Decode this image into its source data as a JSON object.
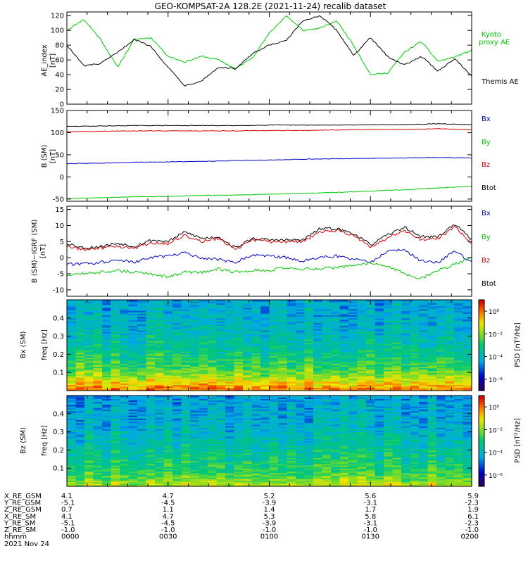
{
  "title": "GEO-KOMPSAT-2A 128.2E (2021-11-24) recalib dataset",
  "colors": {
    "black": "#000000",
    "red": "#d40000",
    "blue": "#0000c8",
    "green": "#00d000",
    "frame": "#000000"
  },
  "panels": [
    {
      "id": "ae",
      "ylabel": "AE_index",
      "yunit": "[nT]",
      "yrange": [
        0,
        125
      ],
      "yticks": [
        "0",
        "20",
        "40",
        "60",
        "80",
        "100",
        "120"
      ],
      "legend": [
        {
          "text": "Kyoto",
          "color": "#00c800"
        },
        {
          "text": "proxy AE",
          "color": "#00c800"
        },
        {
          "text": "Themis AE",
          "color": "#000000"
        }
      ]
    },
    {
      "id": "bsm",
      "ylabel": "B (SM)",
      "yunit": "[nT]",
      "yrange": [
        -55,
        150
      ],
      "yticks": [
        "-50",
        "0",
        "50",
        "100",
        "150"
      ],
      "legend": [
        {
          "text": "Bx",
          "color": "#0000c8"
        },
        {
          "text": "By",
          "color": "#00c800"
        },
        {
          "text": "Bz",
          "color": "#d40000"
        },
        {
          "text": "Btot",
          "color": "#000000"
        }
      ]
    },
    {
      "id": "bigrf",
      "ylabel": "B (SM)−IGRF (SM)",
      "yunit": "[nT]",
      "yrange": [
        -12,
        16
      ],
      "yticks": [
        "-10",
        "-5",
        "0",
        "5",
        "10",
        "15"
      ],
      "legend": [
        {
          "text": "Bx",
          "color": "#0000c8"
        },
        {
          "text": "By",
          "color": "#00c800"
        },
        {
          "text": "Bz",
          "color": "#d40000"
        },
        {
          "text": "Btot",
          "color": "#000000"
        }
      ]
    },
    {
      "id": "specbx",
      "ylabel": "Bx (SM)",
      "yunit": "freq [Hz]",
      "yrange": [
        0,
        0.5
      ],
      "yticks": [
        "0.1",
        "0.2",
        "0.3",
        "0.4"
      ],
      "colorbar_label": "PSD [nT²/Hz]",
      "colorbar_ticks": [
        "10⁰",
        "10⁻²",
        "10⁻⁴",
        "10⁻⁶"
      ]
    },
    {
      "id": "specbz",
      "ylabel": "Bz (SM)",
      "yunit": "freq [Hz]",
      "yrange": [
        0,
        0.5
      ],
      "yticks": [
        "0.1",
        "0.2",
        "0.3",
        "0.4"
      ],
      "colorbar_label": "PSD [nT²/Hz]",
      "colorbar_ticks": [
        "10⁰",
        "10⁻²",
        "10⁻⁴",
        "10⁻⁶"
      ]
    }
  ],
  "orbit_table": {
    "rows": [
      {
        "label": "X_RE_GSM",
        "values": [
          "4.1",
          "4.7",
          "5.2",
          "5.6",
          "5.9"
        ]
      },
      {
        "label": "Y_RE_GSM",
        "values": [
          "-5.1",
          "-4.5",
          "-3.9",
          "-3.1",
          "-2.3"
        ]
      },
      {
        "label": "Z_RE_GSM",
        "values": [
          "0.7",
          "1.1",
          "1.4",
          "1.7",
          "1.9"
        ]
      },
      {
        "label": "X_RE_SM",
        "values": [
          "4.1",
          "4.7",
          "5.3",
          "5.8",
          "6.1"
        ]
      },
      {
        "label": "Y_RE_SM",
        "values": [
          "-5.1",
          "-4.5",
          "-3.9",
          "-3.1",
          "-2.3"
        ]
      },
      {
        "label": "Z_RE_SM",
        "values": [
          "-1.0",
          "-1.0",
          "-1.0",
          "-1.0",
          "-1.0"
        ]
      },
      {
        "label": "hhmm",
        "values": [
          "0000",
          "0030",
          "0100",
          "0130",
          "0200"
        ]
      }
    ],
    "date": "2021 Nov 24"
  },
  "chart_data": [
    {
      "type": "line",
      "title": "GEO-KOMPSAT-2A 128.2E (2021-11-24) recalib dataset",
      "xlabel": "hhmm",
      "ylabel": "AE_index [nT]",
      "x": [
        0,
        5,
        10,
        15,
        20,
        25,
        30,
        35,
        40,
        45,
        50,
        55,
        60,
        65,
        70,
        75,
        80,
        85,
        90,
        95,
        100,
        105,
        110,
        115,
        120
      ],
      "xlim": [
        0,
        120
      ],
      "ylim": [
        0,
        125
      ],
      "series": [
        {
          "name": "Kyoto proxy AE",
          "color": "#00c800",
          "values": [
            100,
            115,
            88,
            50,
            88,
            90,
            65,
            57,
            65,
            60,
            48,
            63,
            96,
            120,
            100,
            103,
            113,
            80,
            40,
            42,
            70,
            85,
            58,
            64,
            73
          ]
        },
        {
          "name": "Themis AE",
          "color": "#000000",
          "values": [
            80,
            52,
            55,
            70,
            88,
            78,
            50,
            25,
            32,
            50,
            48,
            68,
            80,
            86,
            113,
            120,
            100,
            66,
            90,
            65,
            53,
            65,
            45,
            62,
            38
          ]
        }
      ]
    },
    {
      "type": "line",
      "ylabel": "B (SM) [nT]",
      "x": [
        0,
        10,
        20,
        30,
        40,
        50,
        60,
        70,
        80,
        90,
        100,
        110,
        120
      ],
      "xlim": [
        0,
        120
      ],
      "ylim": [
        -55,
        150
      ],
      "series": [
        {
          "name": "Btot",
          "color": "#000000",
          "values": [
            114,
            115,
            116,
            116,
            116,
            116,
            117,
            117,
            117,
            118,
            118,
            120,
            118
          ]
        },
        {
          "name": "Bz",
          "color": "#d40000",
          "values": [
            102,
            103,
            104,
            104,
            104,
            104,
            105,
            105,
            106,
            107,
            107,
            109,
            106
          ]
        },
        {
          "name": "Bx",
          "color": "#0000c8",
          "values": [
            30,
            31,
            33,
            34,
            35,
            37,
            38,
            40,
            41,
            42,
            43,
            44,
            43
          ]
        },
        {
          "name": "By",
          "color": "#00c800",
          "values": [
            -49,
            -47,
            -45,
            -44,
            -42,
            -41,
            -39,
            -37,
            -35,
            -32,
            -29,
            -25,
            -21
          ]
        }
      ]
    },
    {
      "type": "line",
      "ylabel": "B (SM)−IGRF (SM) [nT]",
      "x": [
        0,
        5,
        10,
        15,
        20,
        25,
        30,
        35,
        40,
        45,
        50,
        55,
        60,
        65,
        70,
        75,
        80,
        85,
        90,
        95,
        100,
        105,
        110,
        115,
        120
      ],
      "xlim": [
        0,
        120
      ],
      "ylim": [
        -12,
        16
      ],
      "series": [
        {
          "name": "Btot",
          "color": "#000000",
          "values": [
            4.5,
            3.0,
            3.5,
            4.5,
            3.5,
            5.5,
            5.0,
            8.0,
            6.0,
            6.5,
            3.0,
            6.0,
            5.5,
            5.5,
            5.5,
            9.0,
            9.0,
            7.5,
            4.0,
            7.0,
            9.5,
            6.5,
            6.5,
            10.5,
            5.5
          ]
        },
        {
          "name": "Bz",
          "color": "#d40000",
          "values": [
            3.5,
            2.5,
            3.0,
            3.5,
            3.0,
            4.5,
            4.5,
            7.0,
            5.0,
            6.0,
            2.5,
            5.5,
            5.0,
            5.0,
            5.0,
            8.0,
            8.5,
            7.0,
            3.5,
            6.0,
            8.5,
            5.5,
            6.0,
            9.5,
            4.5
          ]
        },
        {
          "name": "Bx",
          "color": "#0000c8",
          "values": [
            -2.0,
            -2.0,
            -1.5,
            -0.5,
            -1.5,
            0.0,
            0.5,
            1.5,
            0.0,
            -0.5,
            -1.5,
            1.0,
            0.5,
            0.0,
            -1.0,
            0.0,
            0.5,
            -0.5,
            -1.5,
            2.0,
            2.5,
            -1.0,
            -1.5,
            2.0,
            -1.5
          ]
        },
        {
          "name": "By",
          "color": "#00c800",
          "values": [
            -5.5,
            -5.0,
            -4.5,
            -4.0,
            -4.5,
            -5.0,
            -6.0,
            -4.5,
            -4.5,
            -3.5,
            -4.5,
            -4.0,
            -4.0,
            -3.0,
            -3.5,
            -3.5,
            -3.0,
            -2.5,
            -1.5,
            -2.5,
            -5.0,
            -6.5,
            -4.0,
            -2.0,
            0.0
          ]
        }
      ]
    },
    {
      "type": "heatmap",
      "ylabel": "Bx (SM) freq [Hz]",
      "colorbar_label": "PSD [nT²/Hz]",
      "xlim": [
        0,
        120
      ],
      "ylim": [
        0,
        0.5
      ],
      "clim_log10": [
        -7,
        1
      ],
      "freq_profile_log10": [
        0.0,
        -1.0,
        -2.0,
        -2.6,
        -3.0,
        -3.4,
        -3.6,
        -3.8,
        -4.0,
        -4.1,
        -4.2,
        -4.3
      ]
    },
    {
      "type": "heatmap",
      "ylabel": "Bz (SM) freq [Hz]",
      "colorbar_label": "PSD [nT²/Hz]",
      "xlim": [
        0,
        120
      ],
      "ylim": [
        0,
        0.5
      ],
      "clim_log10": [
        -7,
        1
      ],
      "freq_profile_log10": [
        -1.5,
        -2.2,
        -2.8,
        -3.0,
        -3.3,
        -3.6,
        -3.8,
        -4.0,
        -4.1,
        -4.2,
        -4.3,
        -4.4
      ]
    }
  ]
}
